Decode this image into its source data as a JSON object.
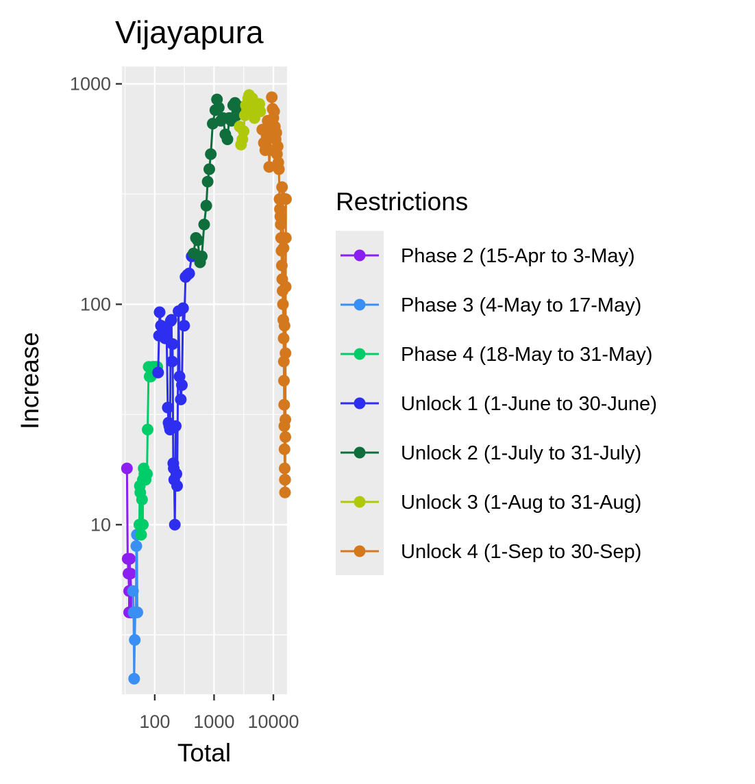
{
  "chart_data": {
    "type": "scatter",
    "title": "Vijayapura",
    "xlabel": "Total",
    "ylabel": "Increase",
    "x_scale": "log10",
    "y_scale": "log10",
    "xlim": [
      28,
      17000
    ],
    "ylim": [
      1.7,
      1200
    ],
    "x_ticks": [
      100,
      1000,
      10000
    ],
    "x_tick_labels": [
      "100",
      "1000",
      "10000"
    ],
    "y_ticks": [
      10,
      100,
      1000
    ],
    "y_tick_labels": [
      "10",
      "100",
      "1000"
    ],
    "grid": true,
    "legend_position": "right",
    "legend": {
      "title": "Restrictions"
    },
    "series": [
      {
        "name": "Phase 2 (15-Apr to 3-May)",
        "color": "#8B1EF0",
        "points": [
          [
            34,
            18
          ],
          [
            35,
            7
          ],
          [
            36,
            6
          ],
          [
            37,
            5
          ],
          [
            37,
            4
          ],
          [
            38,
            7
          ],
          [
            38,
            6
          ],
          [
            39,
            6
          ],
          [
            40,
            5
          ],
          [
            40,
            4
          ],
          [
            41,
            4
          ]
        ]
      },
      {
        "name": "Phase 3 (4-May to 17-May)",
        "color": "#3A8FF5",
        "points": [
          [
            43,
            5
          ],
          [
            44,
            4
          ],
          [
            45,
            2
          ],
          [
            46,
            3
          ],
          [
            47,
            4
          ],
          [
            48,
            4
          ],
          [
            49,
            8
          ],
          [
            50,
            9
          ],
          [
            51,
            4
          ]
        ]
      },
      {
        "name": "Phase 4 (18-May to 31-May)",
        "color": "#00CC6A",
        "points": [
          [
            55,
            10
          ],
          [
            56,
            15
          ],
          [
            57,
            14
          ],
          [
            58,
            10
          ],
          [
            59,
            9
          ],
          [
            61,
            13
          ],
          [
            63,
            10
          ],
          [
            63,
            16
          ],
          [
            65,
            18
          ],
          [
            67,
            17
          ],
          [
            70,
            16
          ],
          [
            74,
            17
          ],
          [
            76,
            27
          ],
          [
            79,
            52
          ],
          [
            82,
            47
          ],
          [
            86,
            47
          ],
          [
            92,
            52
          ],
          [
            96,
            52
          ],
          [
            100,
            52
          ],
          [
            105,
            52
          ],
          [
            110,
            52
          ]
        ]
      },
      {
        "name": "Unlock 1 (1-June to 30-June)",
        "color": "#2E2EF0",
        "points": [
          [
            114,
            49
          ],
          [
            118,
            72
          ],
          [
            121,
            92
          ],
          [
            127,
            80
          ],
          [
            135,
            72
          ],
          [
            142,
            75
          ],
          [
            150,
            70
          ],
          [
            158,
            76
          ],
          [
            166,
            34
          ],
          [
            171,
            29
          ],
          [
            176,
            28
          ],
          [
            181,
            27
          ],
          [
            186,
            84
          ],
          [
            191,
            85
          ],
          [
            196,
            55
          ],
          [
            200,
            66
          ],
          [
            205,
            19
          ],
          [
            209,
            18
          ],
          [
            213,
            16
          ],
          [
            218,
            10
          ],
          [
            226,
            28
          ],
          [
            232,
            17
          ],
          [
            238,
            15
          ],
          [
            252,
            93
          ],
          [
            262,
            47
          ],
          [
            275,
            37
          ],
          [
            287,
            43
          ],
          [
            300,
            96
          ],
          [
            313,
            80
          ],
          [
            330,
            133
          ],
          [
            356,
            136
          ],
          [
            380,
            138
          ],
          [
            420,
            165
          ]
        ]
      },
      {
        "name": "Unlock 2 (1-July to 31-July)",
        "color": "#0F6E3C",
        "points": [
          [
            450,
            170
          ],
          [
            495,
            200
          ],
          [
            530,
            195
          ],
          [
            580,
            155
          ],
          [
            620,
            165
          ],
          [
            680,
            230
          ],
          [
            740,
            280
          ],
          [
            780,
            360
          ],
          [
            830,
            410
          ],
          [
            880,
            480
          ],
          [
            950,
            660
          ],
          [
            1050,
            760
          ],
          [
            1120,
            850
          ],
          [
            1200,
            780
          ],
          [
            1300,
            680
          ],
          [
            1420,
            700
          ],
          [
            1550,
            590
          ],
          [
            1680,
            560
          ],
          [
            1800,
            700
          ],
          [
            1950,
            680
          ],
          [
            2100,
            800
          ],
          [
            2250,
            820
          ],
          [
            2400,
            720
          ],
          [
            2550,
            790
          ]
        ]
      },
      {
        "name": "Unlock 3 (1-Aug to 31-Aug)",
        "color": "#AFC80A",
        "points": [
          [
            2700,
            640
          ],
          [
            2850,
            530
          ],
          [
            3000,
            560
          ],
          [
            3150,
            610
          ],
          [
            3300,
            720
          ],
          [
            3450,
            800
          ],
          [
            3600,
            760
          ],
          [
            3750,
            860
          ],
          [
            3900,
            890
          ],
          [
            4050,
            820
          ],
          [
            4200,
            760
          ],
          [
            4400,
            860
          ],
          [
            4600,
            830
          ],
          [
            4800,
            700
          ],
          [
            5000,
            730
          ],
          [
            5200,
            780
          ],
          [
            5500,
            770
          ],
          [
            5800,
            810
          ],
          [
            6000,
            750
          ]
        ]
      },
      {
        "name": "Unlock 4 (1-Sep to 30-Sep)",
        "color": "#D4781E",
        "points": [
          [
            6500,
            620
          ],
          [
            6900,
            540
          ],
          [
            7300,
            500
          ],
          [
            7700,
            580
          ],
          [
            8000,
            680
          ],
          [
            8300,
            620
          ],
          [
            8500,
            420
          ],
          [
            8800,
            500
          ],
          [
            9100,
            580
          ],
          [
            9400,
            870
          ],
          [
            9700,
            770
          ],
          [
            10000,
            700
          ],
          [
            10300,
            750
          ],
          [
            10600,
            640
          ],
          [
            10900,
            560
          ],
          [
            11200,
            600
          ],
          [
            11500,
            480
          ],
          [
            11800,
            520
          ],
          [
            12100,
            440
          ],
          [
            12400,
            410
          ],
          [
            12700,
            300
          ],
          [
            12900,
            270
          ],
          [
            13100,
            250
          ],
          [
            13300,
            230
          ],
          [
            13500,
            200
          ],
          [
            13700,
            175
          ],
          [
            13900,
            150
          ],
          [
            14100,
            130
          ],
          [
            14300,
            115
          ],
          [
            14500,
            100
          ],
          [
            14700,
            85
          ],
          [
            14900,
            70
          ],
          [
            15000,
            55
          ],
          [
            15100,
            45
          ],
          [
            15200,
            35
          ],
          [
            15300,
            28
          ],
          [
            15400,
            22
          ],
          [
            15500,
            18
          ],
          [
            15600,
            16
          ],
          [
            15700,
            14
          ],
          [
            15800,
            16
          ],
          [
            15900,
            30
          ],
          [
            16000,
            60
          ],
          [
            16100,
            120
          ],
          [
            16200,
            200
          ],
          [
            16300,
            300
          ],
          [
            14000,
            340
          ],
          [
            14800,
            180
          ],
          [
            15400,
            80
          ],
          [
            15900,
            25
          ]
        ]
      }
    ]
  }
}
